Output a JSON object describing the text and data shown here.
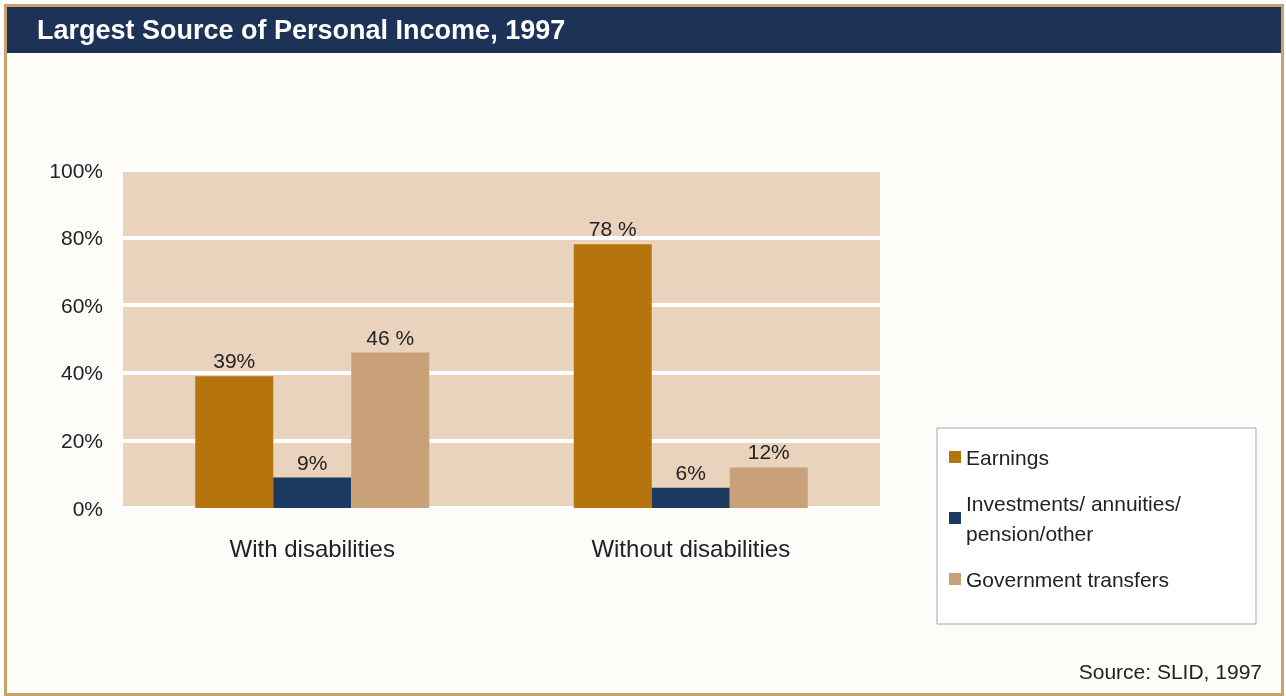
{
  "chart_data": {
    "type": "bar",
    "title": "Largest Source of Personal Income, 1997",
    "categories": [
      "With disabilities",
      "Without disabilities"
    ],
    "series": [
      {
        "name": "Earnings",
        "color": "#b5740e",
        "values": [
          39,
          78
        ],
        "value_labels": [
          "39%",
          "78 %"
        ]
      },
      {
        "name": "Investments/ annuities/pension/other",
        "color": "#1b3a5f",
        "values": [
          9,
          6
        ],
        "value_labels": [
          "9%",
          "6%"
        ]
      },
      {
        "name": "Government transfers",
        "color": "#c9a179",
        "values": [
          46,
          12
        ],
        "value_labels": [
          "46 %",
          "12%"
        ]
      }
    ],
    "ylim": [
      0,
      100
    ],
    "yticks": [
      {
        "value": 0,
        "label": "0%"
      },
      {
        "value": 20,
        "label": "20%"
      },
      {
        "value": 40,
        "label": "40%"
      },
      {
        "value": 60,
        "label": "60%"
      },
      {
        "value": 80,
        "label": "80%"
      },
      {
        "value": 100,
        "label": "100%"
      }
    ],
    "grid": "y",
    "legend": "right",
    "annotations": [
      "Source: SLID, 1997"
    ]
  }
}
